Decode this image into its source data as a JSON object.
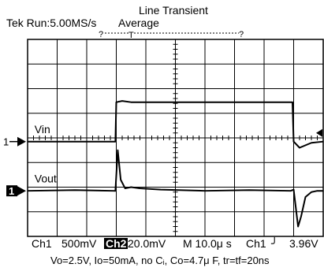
{
  "header": {
    "title": "Line Transient",
    "status": "Tek Run:5.00MS/s",
    "acquisition": "Average"
  },
  "trigger_markers": {
    "left": "?",
    "center": "T",
    "right": "?"
  },
  "readout": {
    "ch1_label": "Ch1",
    "ch1_scale": "500mV",
    "ch2_label": "Ch2",
    "ch2_scale": "20.0mV",
    "timebase": "M 10.0μ s",
    "trigger_source": "Ch1",
    "trigger_slope": "╯",
    "trigger_level": "3.96V"
  },
  "caption": "Vo=2.5V, Io=50mA, no Cᵢ, Co=4.7μ F, tr=tf=20ns",
  "colors": {
    "background": "#ffffff",
    "trace": "#000000",
    "grid": "#000000"
  },
  "chart_data": {
    "type": "line",
    "grid": true,
    "divisions": {
      "x": 10,
      "y": 8
    },
    "x_unit": "div",
    "y_unit": "div",
    "xlim": [
      0,
      10
    ],
    "ylim": [
      -4,
      4
    ],
    "channel_markers": [
      {
        "label": "1",
        "level": -0.15,
        "inverted": false
      },
      {
        "label": "1",
        "level": -2.15,
        "inverted": true
      }
    ],
    "trigger_level_marker": 0.2,
    "series": [
      {
        "name": "Vin",
        "label_pos": [
          0.5,
          0.2
        ],
        "x": [
          0,
          1.6,
          2.9,
          2.97,
          3.0,
          3.2,
          3.5,
          4.5,
          6.0,
          7.5,
          8.9,
          8.96,
          9.0,
          9.2,
          9.6,
          11.0
        ],
        "y": [
          -0.15,
          -0.15,
          -0.15,
          -0.15,
          1.45,
          1.5,
          1.45,
          1.45,
          1.45,
          1.45,
          1.45,
          1.45,
          -0.15,
          -0.4,
          -0.2,
          -0.15
        ]
      },
      {
        "name": "Vout",
        "label_pos": [
          0.5,
          -1.8
        ],
        "x": [
          0,
          1.6,
          2.9,
          2.97,
          3.05,
          3.15,
          3.3,
          3.5,
          3.8,
          4.5,
          6.0,
          7.5,
          8.9,
          9.0,
          9.15,
          9.25,
          9.4,
          9.6,
          9.8,
          11.0
        ],
        "y": [
          -2.15,
          -2.12,
          -2.15,
          -2.15,
          -0.5,
          -1.7,
          -2.05,
          -2.0,
          -2.05,
          -2.1,
          -2.15,
          -2.12,
          -2.15,
          -2.1,
          -3.6,
          -3.2,
          -2.4,
          -2.2,
          -2.15,
          -2.15
        ]
      }
    ]
  }
}
